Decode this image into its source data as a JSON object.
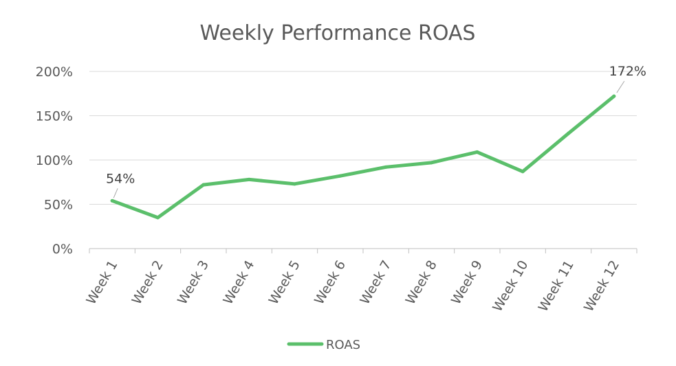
{
  "chart_data": {
    "type": "line",
    "title": "Weekly Performance ROAS",
    "xlabel": "",
    "ylabel": "",
    "categories": [
      "Week 1",
      "Week 2",
      "Week 3",
      "Week 4",
      "Week 5",
      "Week 6",
      "Week 7",
      "Week 8",
      "Week 9",
      "Week 10",
      "Week 11",
      "Week 12"
    ],
    "series": [
      {
        "name": "ROAS",
        "values": [
          54,
          35,
          72,
          78,
          73,
          82,
          92,
          97,
          109,
          87,
          130,
          172
        ],
        "color": "#5bbf6b"
      }
    ],
    "y_unit": "%",
    "ylim": [
      0,
      200
    ],
    "y_ticks": [
      "0%",
      "50%",
      "100%",
      "150%",
      "200%"
    ],
    "data_labels": [
      {
        "index": 0,
        "text": "54%"
      },
      {
        "index": 11,
        "text": "172%"
      }
    ],
    "grid": true,
    "legend_position": "bottom"
  }
}
